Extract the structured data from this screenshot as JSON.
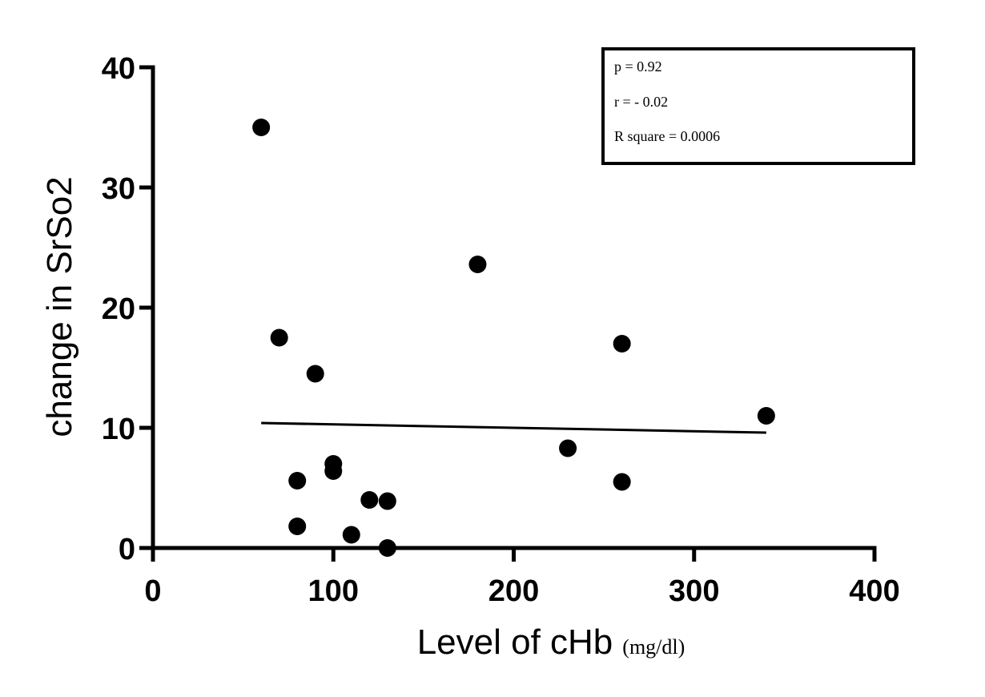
{
  "chart_data": {
    "type": "scatter",
    "title": "",
    "xlabel": "Level of cHb",
    "xlabel_unit": "(mg/dl)",
    "ylabel": "change in SrSo2",
    "xlim": [
      0,
      400
    ],
    "ylim": [
      0,
      40
    ],
    "x_ticks": [
      0,
      100,
      200,
      300,
      400
    ],
    "y_ticks": [
      0,
      10,
      20,
      30,
      40
    ],
    "grid": false,
    "legend": "none",
    "series": [
      {
        "color": "#000000",
        "points": [
          {
            "x": 60,
            "y": 35
          },
          {
            "x": 70,
            "y": 17.5
          },
          {
            "x": 80,
            "y": 5.6
          },
          {
            "x": 80,
            "y": 1.8
          },
          {
            "x": 90,
            "y": 14.5
          },
          {
            "x": 100,
            "y": 7.0
          },
          {
            "x": 100,
            "y": 6.4
          },
          {
            "x": 110,
            "y": 1.1
          },
          {
            "x": 120,
            "y": 4.0
          },
          {
            "x": 130,
            "y": 3.9
          },
          {
            "x": 130,
            "y": 0
          },
          {
            "x": 180,
            "y": 23.6
          },
          {
            "x": 230,
            "y": 8.3
          },
          {
            "x": 260,
            "y": 17.0
          },
          {
            "x": 260,
            "y": 5.5
          },
          {
            "x": 340,
            "y": 11.0
          }
        ]
      }
    ],
    "fit_line": {
      "x": [
        60,
        340
      ],
      "y": [
        10.4,
        9.6
      ]
    },
    "annotations": [
      "p = 0.92",
      "r = - 0.02",
      "R square = 0.0006"
    ]
  }
}
